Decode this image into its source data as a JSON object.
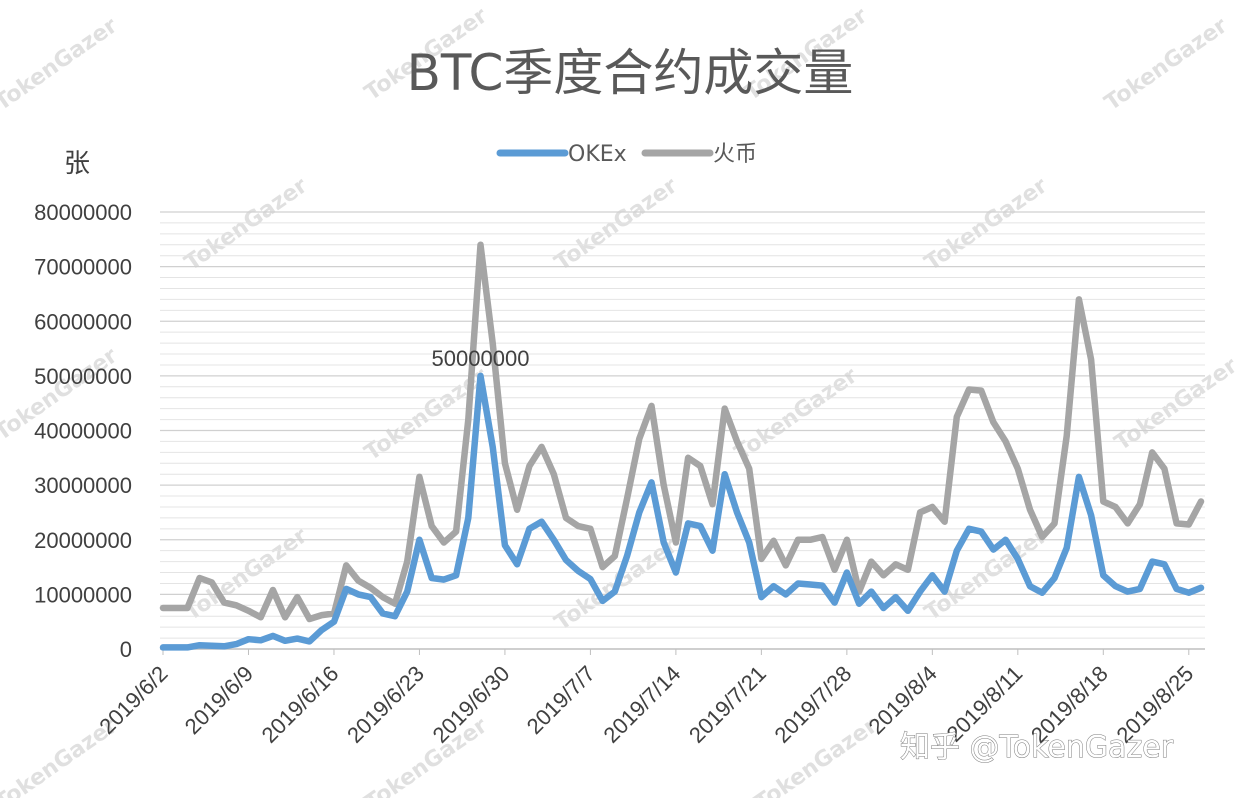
{
  "chart_data": {
    "type": "line",
    "title": "BTC季度合约成交量",
    "ylabel": "张",
    "ylim": [
      0,
      80000000
    ],
    "yticks": [
      "0",
      "10000000",
      "20000000",
      "30000000",
      "40000000",
      "50000000",
      "60000000",
      "70000000",
      "80000000"
    ],
    "x_start": "2019/6/2",
    "x_end": "2019/8/26",
    "xtick_labels": [
      "2019/6/2",
      "2019/6/9",
      "2019/6/16",
      "2019/6/23",
      "2019/6/30",
      "2019/7/7",
      "2019/7/14",
      "2019/7/21",
      "2019/7/28",
      "2019/8/4",
      "2019/8/11",
      "2019/8/18",
      "2019/8/25"
    ],
    "grid": true,
    "legend_position": "top-center",
    "series": [
      {
        "name": "OKEx",
        "color": "#5b9bd5",
        "values": [
          300000,
          300000,
          300000,
          700000,
          600000,
          500000,
          900000,
          1800000,
          1600000,
          2400000,
          1500000,
          1900000,
          1400000,
          3500000,
          5000000,
          11000000,
          10000000,
          9500000,
          6500000,
          6000000,
          10500000,
          20000000,
          13000000,
          12700000,
          13500000,
          24000000,
          50000000,
          37000000,
          19000000,
          15500000,
          22000000,
          23300000,
          20000000,
          16300000,
          14300000,
          12800000,
          8800000,
          10500000,
          17000000,
          25000000,
          30500000,
          19500000,
          14000000,
          23000000,
          22500000,
          18000000,
          32000000,
          25000000,
          19500000,
          9500000,
          11500000,
          10000000,
          12000000,
          11800000,
          11600000,
          8500000,
          14000000,
          8300000,
          10500000,
          7500000,
          9500000,
          7000000,
          10500000,
          13500000,
          10500000,
          18000000,
          22000000,
          21500000,
          18200000,
          20000000,
          16500000,
          11500000,
          10300000,
          13000000,
          18500000,
          31500000,
          24500000,
          13500000,
          11500000,
          10500000,
          11000000,
          16000000,
          15500000,
          11000000,
          10300000,
          11200000
        ],
        "peak_label": "50000000"
      },
      {
        "name": "火币",
        "color": "#a5a5a5",
        "values": [
          7500000,
          7500000,
          7500000,
          13000000,
          12200000,
          8500000,
          8000000,
          7000000,
          5800000,
          10800000,
          5800000,
          9500000,
          5500000,
          6200000,
          6500000,
          15300000,
          12500000,
          11200000,
          9500000,
          8300000,
          16000000,
          31500000,
          22500000,
          19500000,
          21500000,
          42000000,
          74000000,
          56000000,
          34000000,
          25500000,
          33500000,
          37000000,
          32000000,
          24000000,
          22500000,
          22000000,
          15000000,
          17000000,
          27500000,
          38500000,
          44500000,
          30000000,
          19500000,
          35000000,
          33500000,
          26500000,
          44000000,
          38000000,
          33000000,
          16500000,
          19800000,
          15300000,
          20000000,
          20000000,
          20500000,
          14500000,
          20000000,
          10500000,
          16000000,
          13500000,
          15500000,
          14500000,
          25000000,
          26000000,
          23300000,
          42500000,
          47500000,
          47300000,
          41500000,
          38000000,
          33000000,
          25500000,
          20500000,
          23000000,
          39000000,
          64000000,
          53000000,
          27000000,
          26000000,
          23000000,
          26500000,
          36000000,
          33000000,
          23000000,
          22800000,
          27000000
        ]
      }
    ]
  },
  "watermark": {
    "tile_text": "TokenGazer",
    "footer_text": "知乎 @TokenGazer"
  }
}
